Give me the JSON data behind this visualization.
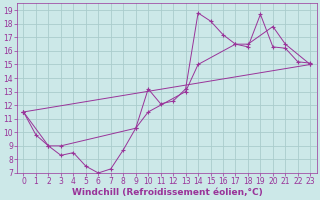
{
  "background_color": "#cce8e8",
  "grid_color": "#aacccc",
  "line_color": "#993399",
  "marker_color": "#993399",
  "xlabel": "Windchill (Refroidissement éolien,°C)",
  "xlim": [
    -0.5,
    23.5
  ],
  "ylim": [
    7,
    19.5
  ],
  "xticks": [
    0,
    1,
    2,
    3,
    4,
    5,
    6,
    7,
    8,
    9,
    10,
    11,
    12,
    13,
    14,
    15,
    16,
    17,
    18,
    19,
    20,
    21,
    22,
    23
  ],
  "yticks": [
    7,
    8,
    9,
    10,
    11,
    12,
    13,
    14,
    15,
    16,
    17,
    18,
    19
  ],
  "line1_x": [
    0,
    1,
    2,
    3,
    4,
    5,
    6,
    7,
    8,
    9,
    10,
    11,
    12,
    13,
    14,
    15,
    16,
    17,
    18,
    19,
    20,
    21,
    22,
    23
  ],
  "line1_y": [
    11.5,
    9.8,
    9.0,
    8.3,
    8.5,
    7.5,
    7.0,
    7.3,
    8.7,
    10.3,
    13.2,
    12.1,
    12.3,
    13.2,
    18.8,
    18.2,
    17.2,
    16.5,
    16.3,
    18.7,
    16.3,
    16.2,
    15.2,
    15.1
  ],
  "line2_x": [
    0,
    2,
    3,
    9,
    10,
    13,
    14,
    17,
    18,
    20,
    21,
    23
  ],
  "line2_y": [
    11.5,
    9.0,
    9.0,
    10.3,
    11.5,
    13.0,
    15.0,
    16.5,
    16.5,
    17.8,
    16.5,
    15.0
  ],
  "line3_x": [
    0,
    23
  ],
  "line3_y": [
    11.5,
    15.0
  ],
  "font_size_label": 6.5,
  "font_size_tick": 5.5
}
